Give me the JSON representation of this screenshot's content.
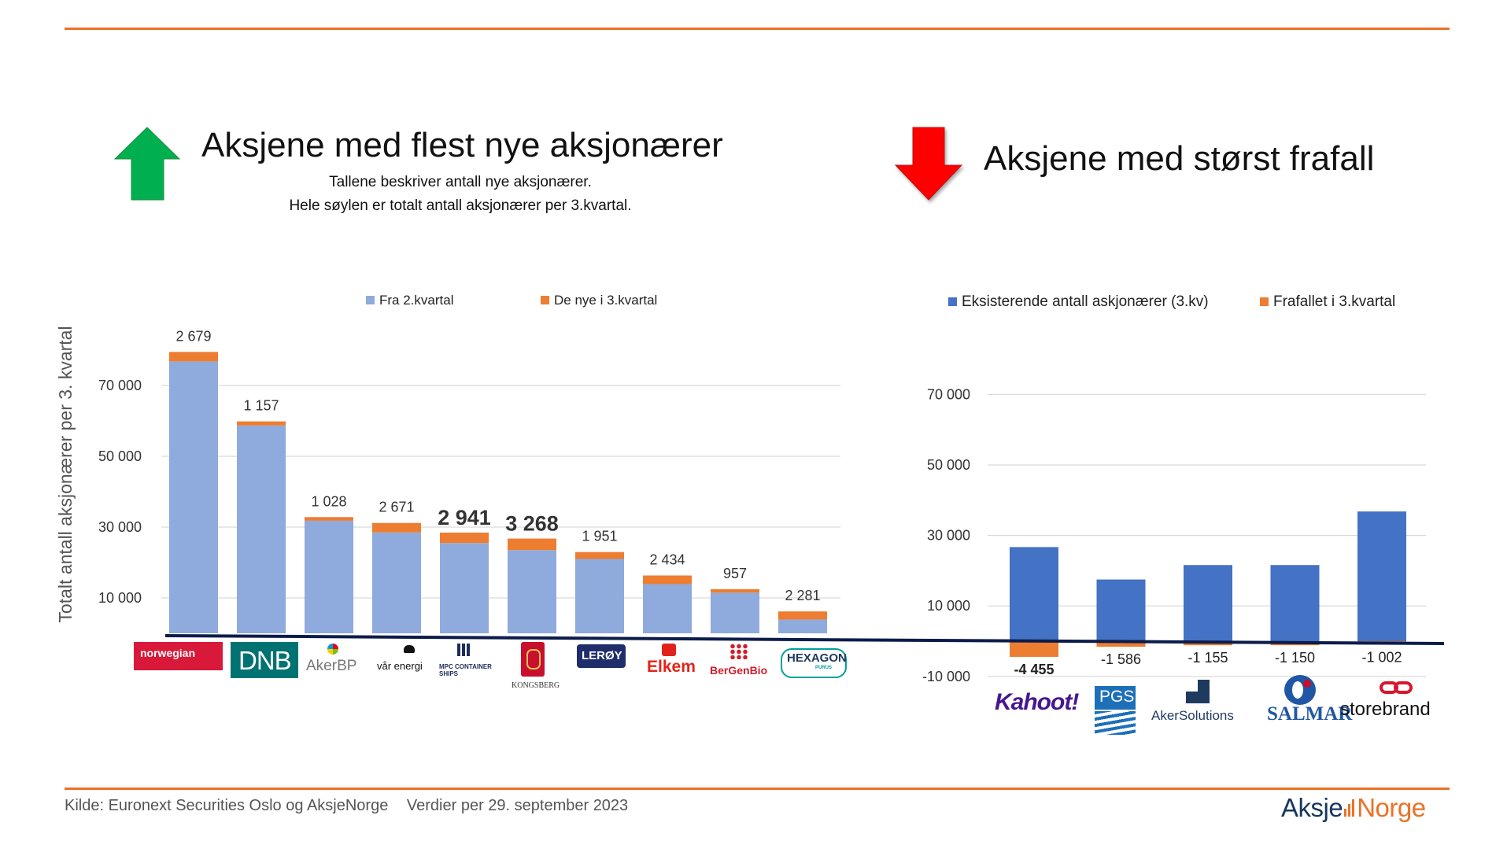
{
  "colors": {
    "accent": "#ec7125",
    "light_blue": "#8faadc",
    "dark_blue": "#4472c4",
    "orange": "#ed7d31",
    "arrow_up": "#00b050",
    "arrow_down": "#ff0000",
    "baseline": "#0c1c4a"
  },
  "header": {
    "left_title": "Aksjene med flest nye aksjonærer",
    "left_subtitle_1": "Tallene beskriver antall nye aksjonærer.",
    "left_subtitle_2": "Hele søylen er totalt antall aksjonærer per 3.kvartal.",
    "right_title": "Aksjene med størst frafall"
  },
  "logos": {
    "left": [
      "norwegian",
      "DNB",
      "AkerBP",
      "vår energi",
      "MPC CONTAINER SHIPS",
      "KONGSBERG",
      "LERØY",
      "Elkem",
      "BerGenBio",
      "HEXAGON"
    ],
    "hexagon_sub": "PURUS",
    "right": [
      "Kahoot!",
      "PGS",
      "AkerSolutions",
      "SALMAR",
      "storebrand"
    ]
  },
  "footer": {
    "source": "Kilde: Euronext Securities Oslo og AksjeNorge",
    "date": "Verdier per 29. september 2023",
    "brand_part1": "Aksje",
    "brand_part2": "Norge"
  },
  "chart_data": [
    {
      "type": "bar",
      "stacked": true,
      "ylabel": "Totalt antall aksjonærer per 3. kvartal",
      "ylim": [
        0,
        80000
      ],
      "y_ticks": [
        10000,
        30000,
        50000,
        70000
      ],
      "y_tick_labels": [
        "10 000",
        "30 000",
        "50 000",
        "70 000"
      ],
      "grid": true,
      "legend_position": "top",
      "categories": [
        "Norwegian",
        "DNB",
        "Aker BP",
        "Vår Energi",
        "MPC Container Ships",
        "Kongsberg",
        "Lerøy",
        "Elkem",
        "BerGenBio",
        "Hexagon Purus"
      ],
      "series": [
        {
          "name": "Fra 2.kvartal",
          "color": "#8faadc",
          "values": [
            76800,
            58700,
            31800,
            28500,
            25500,
            23500,
            21000,
            13900,
            11500,
            3900
          ]
        },
        {
          "name": "De nye i 3.kvartal",
          "color": "#ed7d31",
          "values": [
            2679,
            1157,
            1028,
            2671,
            2941,
            3268,
            1951,
            2434,
            957,
            2281
          ]
        }
      ],
      "data_labels": [
        "2 679",
        "1 157",
        "1 028",
        "2 671",
        "2 941",
        "3 268",
        "1 951",
        "2 434",
        "957",
        "2 281"
      ],
      "emphasized_labels": [
        4,
        5
      ]
    },
    {
      "type": "bar",
      "stacked": true,
      "ylim": [
        -10000,
        70000
      ],
      "y_ticks": [
        -10000,
        10000,
        30000,
        50000,
        70000
      ],
      "y_tick_labels": [
        "-10 000",
        "10 000",
        "30 000",
        "50 000",
        "70 000"
      ],
      "grid": true,
      "legend_position": "top",
      "categories": [
        "Kahoot!",
        "PGS",
        "Aker Solutions",
        "SalMar",
        "Storebrand"
      ],
      "series": [
        {
          "name": "Eksisterende antall askjonærer (3.kv)",
          "color": "#4472c4",
          "values": [
            26700,
            17500,
            21600,
            21600,
            36800
          ]
        },
        {
          "name": "Frafallet i 3.kvartal",
          "color": "#ed7d31",
          "values": [
            -4455,
            -1586,
            -1155,
            -1150,
            -1002
          ]
        }
      ],
      "data_labels": [
        "-4 455",
        "-1 586",
        "-1 155",
        "-1 150",
        "-1 002"
      ],
      "emphasized_labels": [
        0
      ]
    }
  ]
}
